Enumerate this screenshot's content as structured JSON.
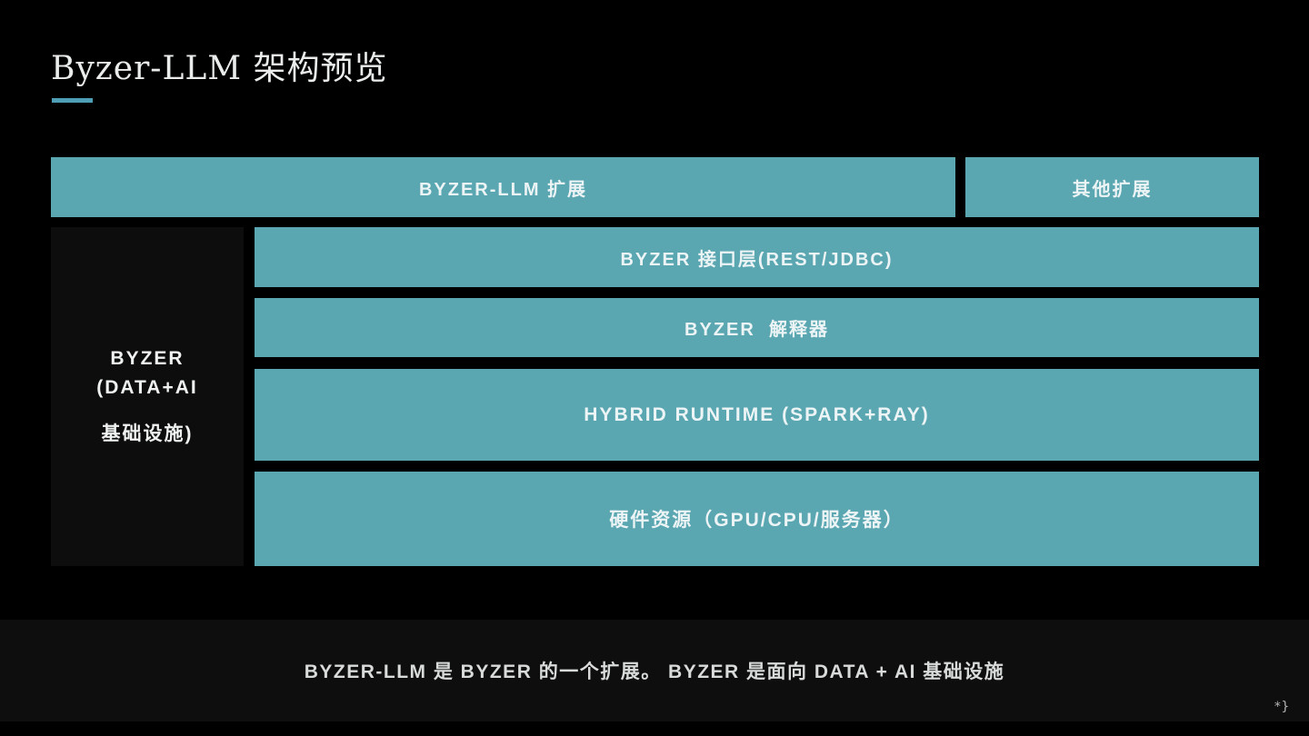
{
  "slide": {
    "title": "Byzer-LLM 架构预览",
    "footer_note": "BYZER-LLM 是 BYZER 的一个扩展。 BYZER 是面向 DATA + AI 基础设施",
    "page_mark": "*}"
  },
  "colors": {
    "background": "#000000",
    "box_teal": "#5AA7B2",
    "title_underline": "#4E9FB5",
    "dark_panel": "#0D0D0D",
    "footer_bg": "#0E0E0E",
    "box_text": "#EDF4F5",
    "title_text": "#E9ECEB"
  },
  "diagram": {
    "top_row": {
      "byzer_llm_extension": "BYZER-LLM 扩展",
      "other_extensions": "其他扩展"
    },
    "left_column": {
      "lines": [
        "BYZER",
        "(DATA+AI",
        "基础设施)"
      ]
    },
    "layers": [
      {
        "label": "BYZER 接口层(REST/JDBC)"
      },
      {
        "label": "BYZER  解释器"
      },
      {
        "label": "HYBRID RUNTIME (SPARK+RAY)"
      },
      {
        "label": "硬件资源（GPU/CPU/服务器）"
      }
    ]
  }
}
